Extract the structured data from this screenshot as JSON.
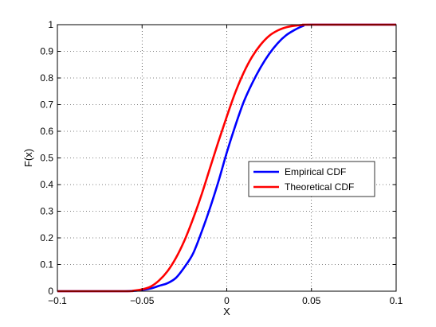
{
  "chart_data": {
    "type": "line",
    "title": "",
    "xlabel": "X",
    "ylabel": "F(x)",
    "xlim": [
      -0.1,
      0.1
    ],
    "ylim": [
      0,
      1
    ],
    "xticks": [
      -0.1,
      -0.05,
      0,
      0.05,
      0.1
    ],
    "xtick_labels": [
      "−0.1",
      "−0.05",
      "0",
      "0.05",
      "0.1"
    ],
    "yticks": [
      0,
      0.1,
      0.2,
      0.3,
      0.4,
      0.5,
      0.6,
      0.7,
      0.8,
      0.9,
      1
    ],
    "ytick_labels": [
      "0",
      "0.1",
      "0.2",
      "0.3",
      "0.4",
      "0.5",
      "0.6",
      "0.7",
      "0.8",
      "0.9",
      "1"
    ],
    "grid": true,
    "legend_position": "center-right",
    "series": [
      {
        "name": "Empirical CDF",
        "color": "#0000ff",
        "x": [
          -0.1,
          -0.06,
          -0.05,
          -0.045,
          -0.04,
          -0.035,
          -0.03,
          -0.025,
          -0.02,
          -0.015,
          -0.01,
          -0.005,
          0,
          0.005,
          0.01,
          0.015,
          0.02,
          0.025,
          0.03,
          0.035,
          0.04,
          0.045,
          0.05,
          0.1
        ],
        "y": [
          0,
          0,
          0.005,
          0.01,
          0.02,
          0.03,
          0.05,
          0.09,
          0.14,
          0.22,
          0.31,
          0.41,
          0.52,
          0.62,
          0.71,
          0.78,
          0.84,
          0.89,
          0.93,
          0.96,
          0.98,
          0.995,
          1,
          1
        ]
      },
      {
        "name": "Theoretical CDF",
        "color": "#ff0000",
        "x": [
          -0.1,
          -0.06,
          -0.055,
          -0.05,
          -0.045,
          -0.04,
          -0.035,
          -0.03,
          -0.025,
          -0.02,
          -0.015,
          -0.01,
          -0.005,
          0,
          0.005,
          0.01,
          0.015,
          0.02,
          0.025,
          0.03,
          0.035,
          0.04,
          0.045,
          0.05,
          0.1
        ],
        "y": [
          0,
          0,
          0.002,
          0.007,
          0.017,
          0.04,
          0.075,
          0.125,
          0.19,
          0.27,
          0.36,
          0.46,
          0.56,
          0.655,
          0.745,
          0.82,
          0.88,
          0.925,
          0.958,
          0.978,
          0.99,
          0.996,
          0.999,
          1,
          1
        ]
      }
    ]
  }
}
